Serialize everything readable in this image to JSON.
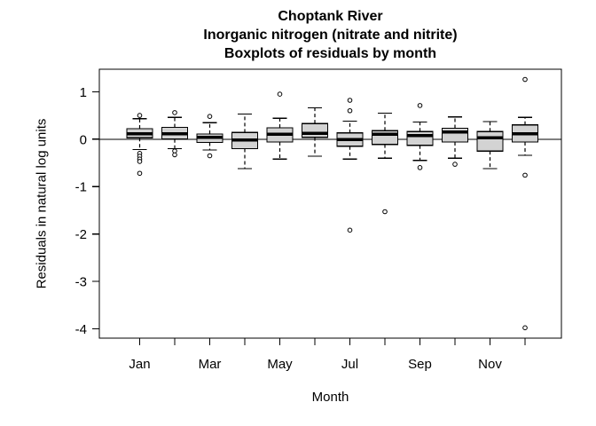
{
  "chart_data": {
    "type": "boxplot",
    "title_lines": [
      "Choptank River",
      "Inorganic nitrogen (nitrate and nitrite)",
      "Boxplots of residuals by month"
    ],
    "xlabel": "Month",
    "ylabel": "Residuals in natural log units",
    "y_ticks": [
      1,
      0,
      -1,
      -2,
      -3,
      -4
    ],
    "ylim": [
      -4.22,
      1.48
    ],
    "grid": false,
    "reference_line_y": 0,
    "months": [
      "Jan",
      "Feb",
      "Mar",
      "Apr",
      "May",
      "Jun",
      "Jul",
      "Aug",
      "Sep",
      "Oct",
      "Nov",
      "Dec"
    ],
    "x_labeled_months": [
      "Jan",
      "Mar",
      "May",
      "Jul",
      "Sep",
      "Nov"
    ],
    "boxes": [
      {
        "month": "Jan",
        "whislo": -0.22,
        "q1": 0.03,
        "med": 0.11,
        "q3": 0.22,
        "whishi": 0.43,
        "outliers": [
          0.5,
          -0.3,
          -0.36,
          -0.42,
          -0.47,
          -0.72
        ]
      },
      {
        "month": "Feb",
        "whislo": -0.2,
        "q1": 0.0,
        "med": 0.11,
        "q3": 0.25,
        "whishi": 0.46,
        "outliers": [
          0.56,
          -0.25,
          -0.33
        ]
      },
      {
        "month": "Mar",
        "whislo": -0.23,
        "q1": -0.07,
        "med": 0.04,
        "q3": 0.11,
        "whishi": 0.35,
        "outliers": [
          0.48,
          -0.35
        ]
      },
      {
        "month": "Apr",
        "whislo": -0.62,
        "q1": -0.2,
        "med": -0.02,
        "q3": 0.14,
        "whishi": 0.53,
        "outliers": []
      },
      {
        "month": "May",
        "whislo": -0.42,
        "q1": -0.06,
        "med": 0.1,
        "q3": 0.24,
        "whishi": 0.44,
        "outliers": [
          0.95
        ]
      },
      {
        "month": "Jun",
        "whislo": -0.36,
        "q1": 0.04,
        "med": 0.12,
        "q3": 0.33,
        "whishi": 0.66,
        "outliers": []
      },
      {
        "month": "Jul",
        "whislo": -0.42,
        "q1": -0.15,
        "med": -0.01,
        "q3": 0.13,
        "whishi": 0.38,
        "outliers": [
          0.82,
          0.6,
          -1.92
        ]
      },
      {
        "month": "Aug",
        "whislo": -0.4,
        "q1": -0.11,
        "med": 0.1,
        "q3": 0.18,
        "whishi": 0.55,
        "outliers": [
          -1.53
        ]
      },
      {
        "month": "Sep",
        "whislo": -0.45,
        "q1": -0.13,
        "med": 0.08,
        "q3": 0.16,
        "whishi": 0.36,
        "outliers": [
          0.71,
          -0.6
        ]
      },
      {
        "month": "Oct",
        "whislo": -0.4,
        "q1": -0.06,
        "med": 0.15,
        "q3": 0.23,
        "whishi": 0.47,
        "outliers": [
          -0.53
        ]
      },
      {
        "month": "Nov",
        "whislo": -0.62,
        "q1": -0.25,
        "med": 0.03,
        "q3": 0.16,
        "whishi": 0.37,
        "outliers": []
      },
      {
        "month": "Dec",
        "whislo": -0.34,
        "q1": -0.06,
        "med": 0.11,
        "q3": 0.3,
        "whishi": 0.46,
        "outliers": [
          1.26,
          -0.76,
          -3.98
        ]
      }
    ],
    "colors": {
      "box_fill": "#d3d3d3",
      "stroke": "#000000",
      "background": "#ffffff"
    }
  }
}
